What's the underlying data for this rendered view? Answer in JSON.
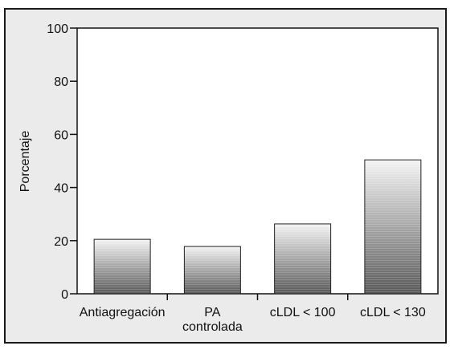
{
  "chart_data": {
    "type": "bar",
    "ylabel": "Porcentaje",
    "xlabel": "",
    "title": "",
    "ylim": [
      0,
      100
    ],
    "yticks": [
      0,
      20,
      40,
      60,
      80,
      100
    ],
    "categories": [
      [
        "Antiagregación"
      ],
      [
        "PA",
        "controlada"
      ],
      [
        "cLDL < 100"
      ],
      [
        "cLDL < 130"
      ]
    ],
    "values": [
      20.5,
      17.8,
      26.3,
      50.4
    ],
    "grid": false,
    "colors": {
      "bar_top": "#f4f4f4",
      "bar_bottom": "#585858",
      "bar_stroke": "#222222",
      "plot_bg": "#ffffff",
      "frame_bg": "#ebebeb",
      "axis": "#111111"
    }
  }
}
